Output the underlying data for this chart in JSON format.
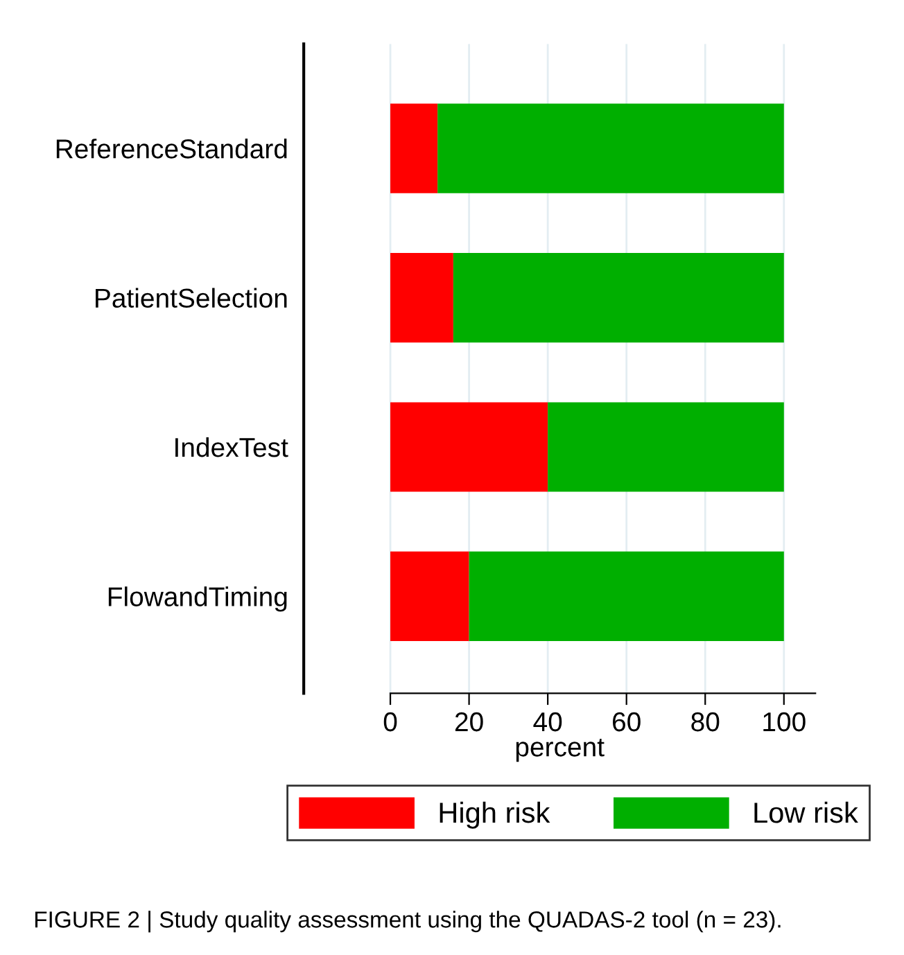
{
  "chart_data": {
    "type": "bar",
    "orientation": "horizontal",
    "stacked": true,
    "categories": [
      "ReferenceStandard",
      "PatientSelection",
      "IndexTest",
      "FlowandTiming"
    ],
    "series": [
      {
        "name": "High risk",
        "color": "#ff0000",
        "values": [
          12,
          16,
          40,
          20
        ]
      },
      {
        "name": "Low risk",
        "color": "#00af00",
        "values": [
          88,
          84,
          60,
          80
        ]
      }
    ],
    "xlabel": "percent",
    "xlim": [
      -22,
      108
    ],
    "xticks": [
      0,
      20,
      40,
      60,
      80,
      100
    ],
    "grid": "x",
    "legend": "bottom",
    "annotations": [
      "FIGURE 2 | Study quality assessment using the QUADAS-2 tool (n = 23)."
    ]
  }
}
